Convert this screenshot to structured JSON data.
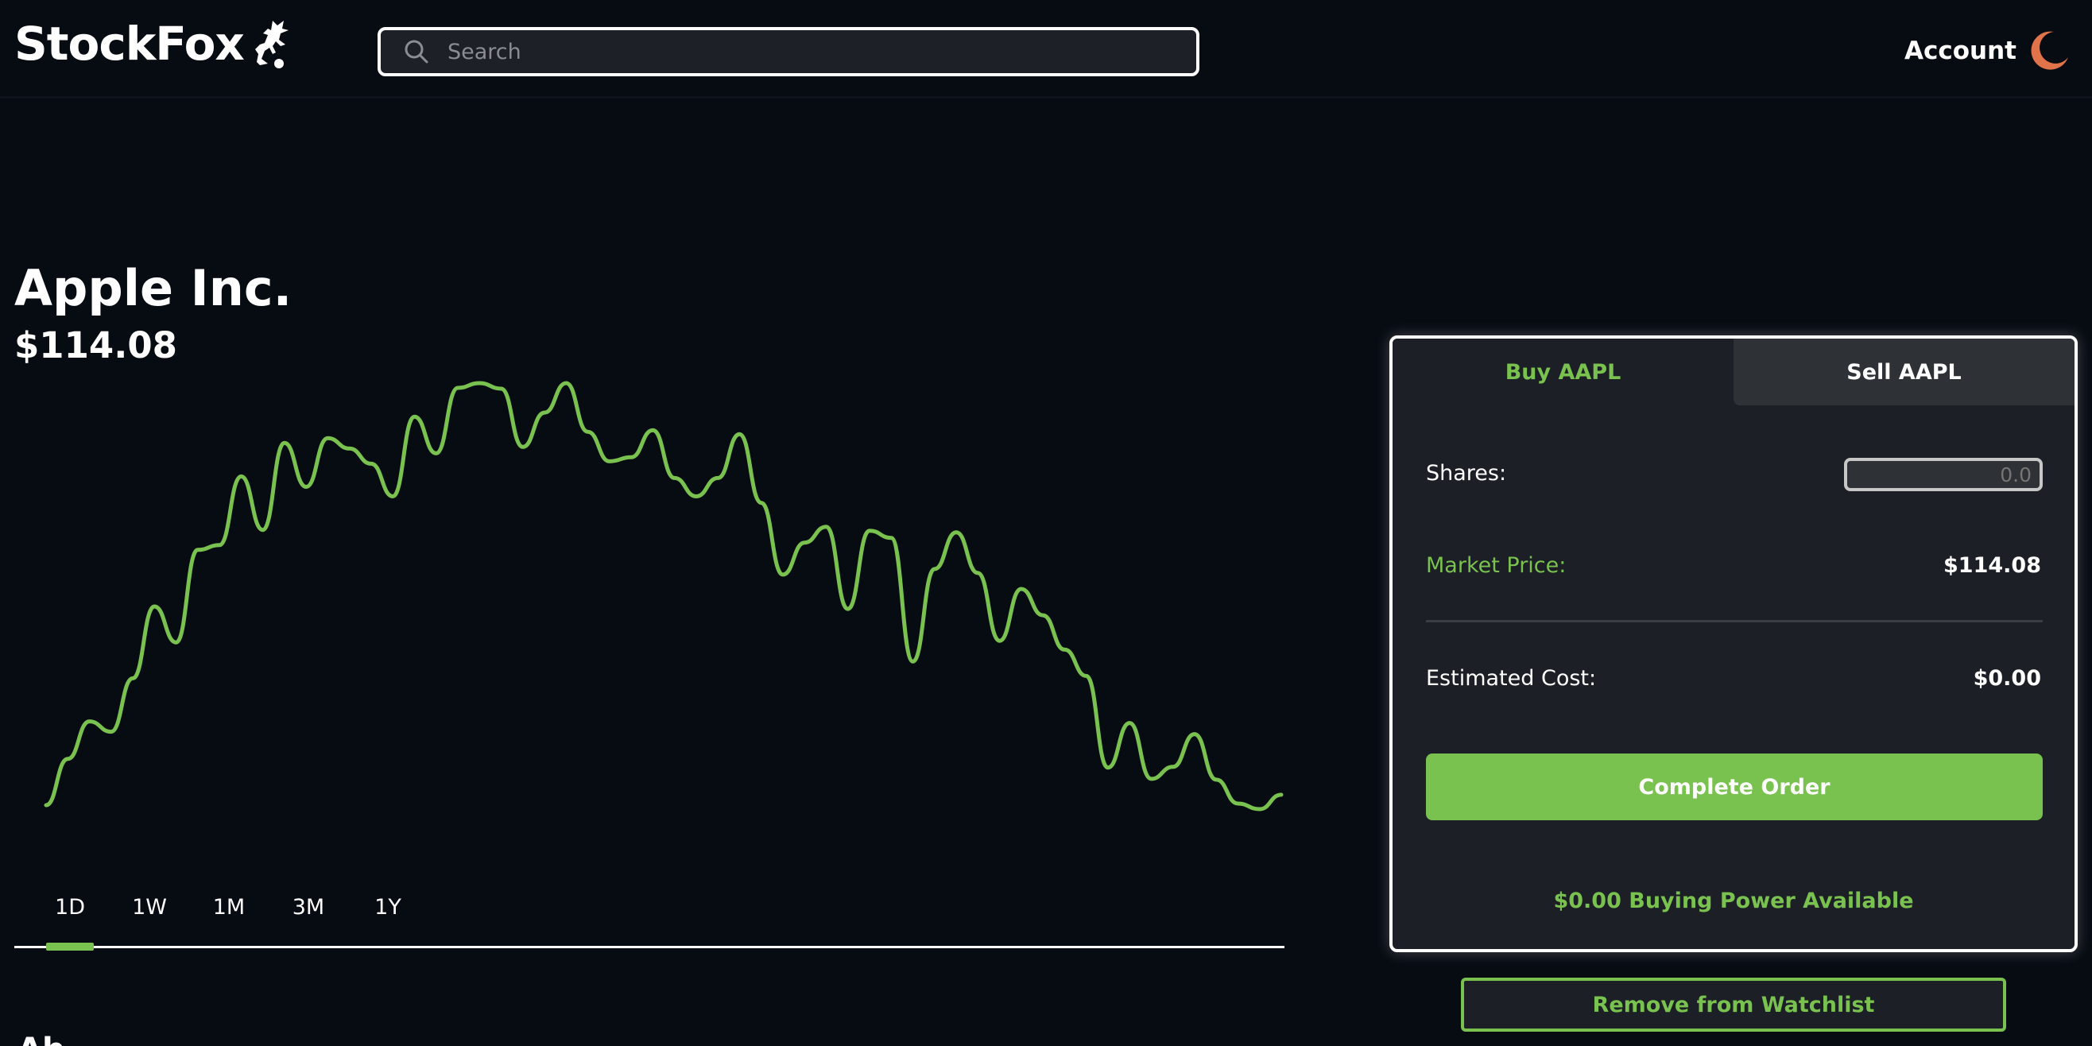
{
  "header": {
    "logo_text": "StockFox",
    "search_placeholder": "Search",
    "account_label": "Account"
  },
  "stock": {
    "name": "Apple Inc.",
    "price": "$114.08"
  },
  "chart_data": {
    "type": "line",
    "range": "1D",
    "color": "#7ac24f",
    "y": [
      64.4,
      70.2,
      74.9,
      73.6,
      80.3,
      89.3,
      84.8,
      96.4,
      97.0,
      105.6,
      98.9,
      109.8,
      104.3,
      110.4,
      109.1,
      107.2,
      103.1,
      113.1,
      108.5,
      116.7,
      117.3,
      116.6,
      109.3,
      113.6,
      117.3,
      111.2,
      107.5,
      108.0,
      111.4,
      105.4,
      103.1,
      105.4,
      110.9,
      102.3,
      93.3,
      97.3,
      99.3,
      89.0,
      98.8,
      97.9,
      82.4,
      94.0,
      98.6,
      93.5,
      85.0,
      91.5,
      88.2,
      83.9,
      80.6,
      69.1,
      74.7,
      67.7,
      69.2,
      73.3,
      67.6,
      64.6,
      63.9,
      65.7
    ]
  },
  "ranges": [
    {
      "label": "1D"
    },
    {
      "label": "1W"
    },
    {
      "label": "1M"
    },
    {
      "label": "3M"
    },
    {
      "label": "1Y"
    }
  ],
  "selected_range": "1D",
  "trade": {
    "buy_tab": "Buy AAPL",
    "sell_tab": "Sell AAPL",
    "shares_label": "Shares:",
    "shares_placeholder": "0.0",
    "market_price_label": "Market Price:",
    "market_price_value": "$114.08",
    "estimated_cost_label": "Estimated Cost:",
    "estimated_cost_value": "$0.00",
    "order_button": "Complete Order",
    "buying_power": "$0.00 Buying Power Available"
  },
  "watchlist_button": "Remove from Watchlist",
  "colors": {
    "accent": "#7ac24f",
    "background": "#070b12",
    "panel": "#1c1f25",
    "moon": "#e0734a"
  },
  "icons": {
    "logo": "fox-icon",
    "search": "search-icon",
    "theme": "moon-icon"
  },
  "below_fold_peek": "Ab"
}
